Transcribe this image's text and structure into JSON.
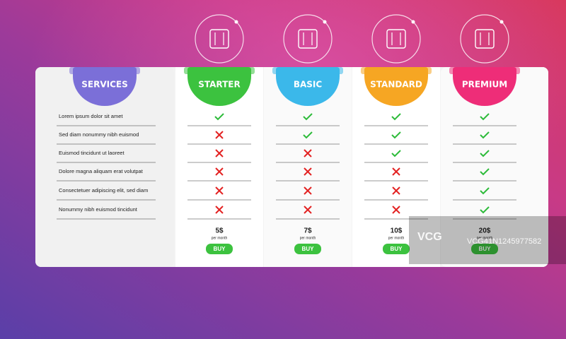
{
  "services": {
    "title": "SERVICES",
    "color": "#7b6fd8",
    "features": [
      "Lorem ipsum dolor sit amet",
      "Sed diam nonummy nibh euismod",
      "Euismod tincidunt ut laoreet",
      "Dolore magna aliquam erat volutpat",
      "Consectetuer adipiscing elit, sed diam",
      "Nonummy nibh euismod tincidunt"
    ]
  },
  "plans": [
    {
      "title": "STARTER",
      "color": "#3cc23f",
      "price": "5$",
      "period": "per month",
      "button": "BUY",
      "included": [
        true,
        false,
        false,
        false,
        false,
        false
      ]
    },
    {
      "title": "BASIC",
      "color": "#3bb8ea",
      "price": "7$",
      "period": "per month",
      "button": "BUY",
      "included": [
        true,
        true,
        false,
        false,
        false,
        false
      ]
    },
    {
      "title": "STANDARD",
      "color": "#f6a623",
      "price": "10$",
      "period": "per month",
      "button": "BUY",
      "included": [
        true,
        true,
        true,
        false,
        false,
        false
      ]
    },
    {
      "title": "PREMIUM",
      "color": "#ee2d78",
      "price": "20$",
      "period": "per month",
      "button": "BUY",
      "included": [
        true,
        true,
        true,
        true,
        true,
        true
      ]
    }
  ],
  "watermark": {
    "logo": "VCG",
    "id": "VCG41N1245977582"
  }
}
